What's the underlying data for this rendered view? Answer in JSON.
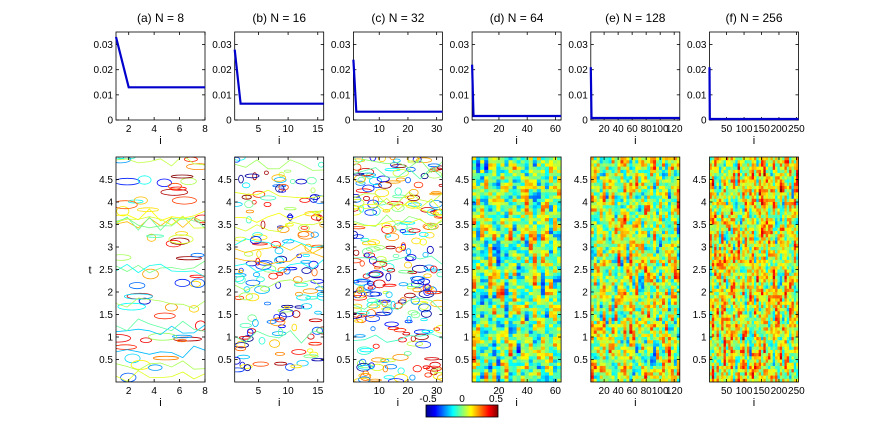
{
  "figure": {
    "colorbar": {
      "ticks": [
        "-0.5",
        "0",
        "0.5"
      ],
      "range": [
        -0.5,
        0.5
      ],
      "colormap": "jet"
    }
  },
  "chart_data": [
    {
      "type": "line",
      "panel": "a",
      "title": "(a)  N = 8",
      "xlabel": "i",
      "ylabel": "",
      "xlim": [
        1,
        8
      ],
      "ylim": [
        0,
        0.035
      ],
      "xticks": [
        "2",
        "4",
        "6",
        "8"
      ],
      "yticks": [
        "0",
        "0.01",
        "0.02",
        "0.03"
      ],
      "series": [
        {
          "color": "#0000cc",
          "x": [
            1,
            2,
            8
          ],
          "y": [
            0.033,
            0.013,
            0.013
          ]
        }
      ]
    },
    {
      "type": "line",
      "panel": "b",
      "title": "(b)  N = 16",
      "xlabel": "i",
      "ylabel": "",
      "xlim": [
        1,
        16
      ],
      "ylim": [
        0,
        0.035
      ],
      "xticks": [
        "5",
        "10",
        "15"
      ],
      "yticks": [
        "0",
        "0.01",
        "0.02",
        "0.03"
      ],
      "series": [
        {
          "color": "#0000cc",
          "x": [
            1,
            2,
            16
          ],
          "y": [
            0.028,
            0.0065,
            0.0065
          ]
        }
      ]
    },
    {
      "type": "line",
      "panel": "c",
      "title": "(c)  N = 32",
      "xlabel": "i",
      "ylabel": "",
      "xlim": [
        1,
        32
      ],
      "ylim": [
        0,
        0.035
      ],
      "xticks": [
        "10",
        "20",
        "30"
      ],
      "yticks": [
        "0",
        "0.01",
        "0.02",
        "0.03"
      ],
      "series": [
        {
          "color": "#0000cc",
          "x": [
            1,
            2,
            32
          ],
          "y": [
            0.024,
            0.0033,
            0.0033
          ]
        }
      ]
    },
    {
      "type": "line",
      "panel": "d",
      "title": "(d)  N = 64",
      "xlabel": "i",
      "ylabel": "",
      "xlim": [
        1,
        64
      ],
      "ylim": [
        0,
        0.035
      ],
      "xticks": [
        "20",
        "40",
        "60"
      ],
      "yticks": [
        "0",
        "0.01",
        "0.02",
        "0.03"
      ],
      "series": [
        {
          "color": "#0000cc",
          "x": [
            1,
            2,
            64
          ],
          "y": [
            0.022,
            0.0016,
            0.0016
          ]
        }
      ]
    },
    {
      "type": "line",
      "panel": "e",
      "title": "(e)  N = 128",
      "xlabel": "i",
      "ylabel": "",
      "xlim": [
        1,
        128
      ],
      "ylim": [
        0,
        0.035
      ],
      "xticks": [
        "20",
        "40",
        "60",
        "80",
        "100",
        "120"
      ],
      "yticks": [
        "0",
        "0.01",
        "0.02",
        "0.03"
      ],
      "series": [
        {
          "color": "#0000cc",
          "x": [
            1,
            2,
            128
          ],
          "y": [
            0.021,
            0.0008,
            0.0008
          ]
        }
      ]
    },
    {
      "type": "line",
      "panel": "f",
      "title": "(f)  N = 256",
      "xlabel": "i",
      "ylabel": "",
      "xlim": [
        1,
        256
      ],
      "ylim": [
        0,
        0.035
      ],
      "xticks": [
        "50",
        "100",
        "150",
        "200",
        "250"
      ],
      "yticks": [
        "0",
        "0.01",
        "0.02",
        "0.03"
      ],
      "series": [
        {
          "color": "#0000cc",
          "x": [
            1,
            2,
            256
          ],
          "y": [
            0.021,
            0.0004,
            0.0004
          ]
        }
      ]
    },
    {
      "type": "heatmap",
      "panel": "a",
      "style": "contour",
      "xlabel": "i",
      "ylabel": "t",
      "xlim": [
        1,
        8
      ],
      "ylim": [
        0,
        5
      ],
      "xticks": [
        "2",
        "4",
        "6",
        "8"
      ],
      "yticks": [
        "0.5",
        "1",
        "1.5",
        "2",
        "2.5",
        "3",
        "3.5",
        "4",
        "4.5"
      ]
    },
    {
      "type": "heatmap",
      "panel": "b",
      "style": "contour",
      "xlabel": "i",
      "ylabel": "",
      "xlim": [
        1,
        16
      ],
      "ylim": [
        0,
        5
      ],
      "xticks": [
        "5",
        "10",
        "15"
      ],
      "yticks": [
        "0.5",
        "1",
        "1.5",
        "2",
        "2.5",
        "3",
        "3.5",
        "4",
        "4.5"
      ]
    },
    {
      "type": "heatmap",
      "panel": "c",
      "style": "contour",
      "xlabel": "i",
      "ylabel": "",
      "xlim": [
        1,
        32
      ],
      "ylim": [
        0,
        5
      ],
      "xticks": [
        "10",
        "20",
        "30"
      ],
      "yticks": [
        "0.5",
        "1",
        "1.5",
        "2",
        "2.5",
        "3",
        "3.5",
        "4",
        "4.5"
      ]
    },
    {
      "type": "heatmap",
      "panel": "d",
      "style": "filled",
      "xlabel": "i",
      "ylabel": "",
      "xlim": [
        1,
        64
      ],
      "ylim": [
        0,
        5
      ],
      "xticks": [
        "20",
        "40",
        "60"
      ],
      "yticks": [
        "0.5",
        "1",
        "1.5",
        "2",
        "2.5",
        "3",
        "3.5",
        "4",
        "4.5"
      ]
    },
    {
      "type": "heatmap",
      "panel": "e",
      "style": "filled",
      "xlabel": "i",
      "ylabel": "",
      "xlim": [
        1,
        128
      ],
      "ylim": [
        0,
        5
      ],
      "xticks": [
        "20",
        "40",
        "60",
        "80",
        "100",
        "120"
      ],
      "yticks": [
        "0.5",
        "1",
        "1.5",
        "2",
        "2.5",
        "3",
        "3.5",
        "4",
        "4.5"
      ]
    },
    {
      "type": "heatmap",
      "panel": "f",
      "style": "filled",
      "xlabel": "i",
      "ylabel": "",
      "xlim": [
        1,
        256
      ],
      "ylim": [
        0,
        5
      ],
      "xticks": [
        "50",
        "100",
        "150",
        "200",
        "250"
      ],
      "yticks": [
        "0.5",
        "1",
        "1.5",
        "2",
        "2.5",
        "3",
        "3.5",
        "4",
        "4.5"
      ]
    }
  ]
}
